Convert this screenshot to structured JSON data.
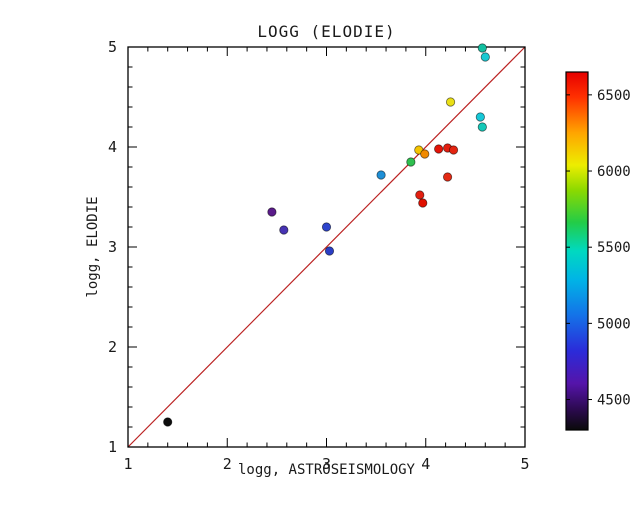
{
  "chart_data": {
    "type": "scatter",
    "title": "LOGG (ELODIE)",
    "xlabel": "logg, ASTROSEISMOLOGY",
    "ylabel": "logg, ELODIE",
    "xlim": [
      1,
      5
    ],
    "ylim": [
      1,
      5
    ],
    "xticks": [
      1,
      2,
      3,
      4,
      5
    ],
    "yticks": [
      1,
      2,
      3,
      4,
      5
    ],
    "grid": false,
    "legend": "none",
    "identity_line": {
      "from": [
        1,
        1
      ],
      "to": [
        5,
        5
      ],
      "color": "#bb2222"
    },
    "points": [
      {
        "x": 1.4,
        "y": 1.25,
        "temp": 4350,
        "color": "#0d0d0d"
      },
      {
        "x": 2.45,
        "y": 3.35,
        "temp": 4500,
        "color": "#5a1b8a"
      },
      {
        "x": 2.57,
        "y": 3.17,
        "temp": 4650,
        "color": "#4733b3"
      },
      {
        "x": 3.0,
        "y": 3.2,
        "temp": 4850,
        "color": "#2d44cc"
      },
      {
        "x": 3.03,
        "y": 2.96,
        "temp": 4800,
        "color": "#2a3ec4"
      },
      {
        "x": 3.55,
        "y": 3.72,
        "temp": 5100,
        "color": "#1f8fd6"
      },
      {
        "x": 3.85,
        "y": 3.85,
        "temp": 5650,
        "color": "#2fbf4f"
      },
      {
        "x": 3.93,
        "y": 3.97,
        "temp": 6100,
        "color": "#f5c400"
      },
      {
        "x": 3.99,
        "y": 3.93,
        "temp": 6250,
        "color": "#f08a00"
      },
      {
        "x": 3.94,
        "y": 3.52,
        "temp": 6450,
        "color": "#e31f10"
      },
      {
        "x": 3.97,
        "y": 3.44,
        "temp": 6500,
        "color": "#e01000"
      },
      {
        "x": 4.13,
        "y": 3.98,
        "temp": 6500,
        "color": "#e31408"
      },
      {
        "x": 4.22,
        "y": 3.99,
        "temp": 6450,
        "color": "#e31f10"
      },
      {
        "x": 4.28,
        "y": 3.97,
        "temp": 6400,
        "color": "#e32410"
      },
      {
        "x": 4.22,
        "y": 3.7,
        "temp": 6350,
        "color": "#e32a14"
      },
      {
        "x": 4.25,
        "y": 4.45,
        "temp": 6050,
        "color": "#eadf16"
      },
      {
        "x": 4.55,
        "y": 4.3,
        "temp": 5250,
        "color": "#16c8d8"
      },
      {
        "x": 4.57,
        "y": 4.2,
        "temp": 5320,
        "color": "#14c9b8"
      },
      {
        "x": 4.6,
        "y": 4.9,
        "temp": 5230,
        "color": "#1bc9d2"
      },
      {
        "x": 4.57,
        "y": 4.99,
        "temp": 5420,
        "color": "#12bfa0"
      }
    ],
    "colorbar": {
      "min": 4300,
      "max": 6650,
      "ticks": [
        4500,
        5000,
        5500,
        6000,
        6500
      ],
      "stops": [
        {
          "offset": 0.0,
          "color": "#0a0a0a"
        },
        {
          "offset": 0.06,
          "color": "#2d0a52"
        },
        {
          "offset": 0.13,
          "color": "#5514aa"
        },
        {
          "offset": 0.22,
          "color": "#2b2bd9"
        },
        {
          "offset": 0.32,
          "color": "#1472e8"
        },
        {
          "offset": 0.42,
          "color": "#00b4e6"
        },
        {
          "offset": 0.5,
          "color": "#00d9c0"
        },
        {
          "offset": 0.58,
          "color": "#23cc47"
        },
        {
          "offset": 0.67,
          "color": "#8cd900"
        },
        {
          "offset": 0.74,
          "color": "#eded00"
        },
        {
          "offset": 0.83,
          "color": "#ffa500"
        },
        {
          "offset": 0.93,
          "color": "#ff3000"
        },
        {
          "offset": 1.0,
          "color": "#e60000"
        }
      ]
    }
  }
}
